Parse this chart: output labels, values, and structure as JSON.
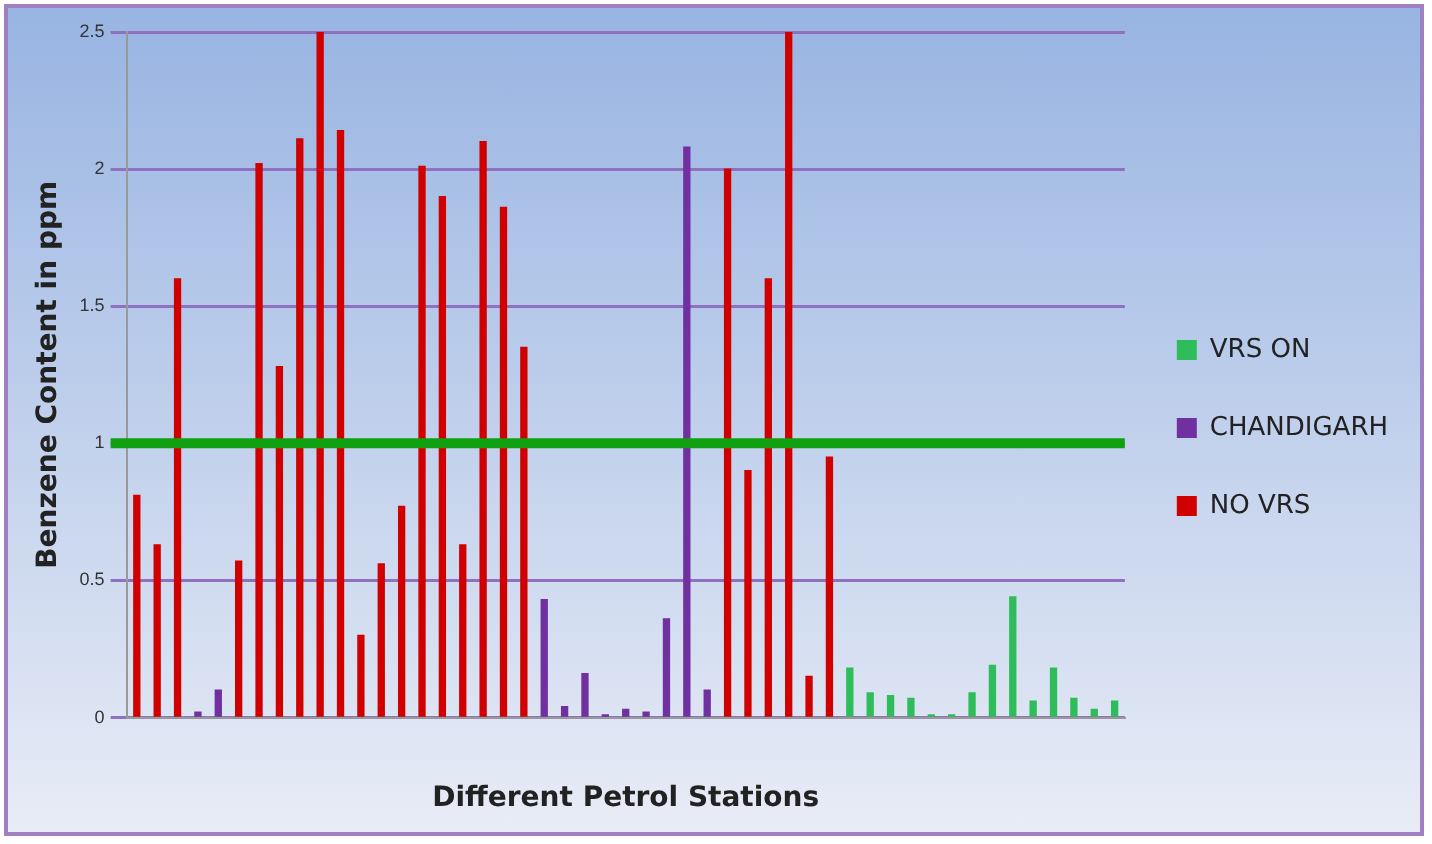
{
  "chart_data": {
    "type": "bar",
    "xlabel": "Different Petrol Stations",
    "ylabel": "Benzene Content in ppm",
    "categories": [
      null,
      null,
      null,
      null,
      null,
      null,
      null,
      null,
      null,
      null,
      null,
      null,
      null,
      null,
      null,
      null,
      null,
      null,
      null,
      null,
      null,
      null,
      null,
      null,
      null,
      null,
      null,
      null,
      null,
      null,
      null,
      null,
      null,
      null,
      null,
      null,
      null,
      null,
      null,
      null,
      null,
      null,
      null,
      null,
      null,
      null,
      null,
      null,
      null
    ],
    "series": [
      {
        "name": "VRS ON",
        "color": "#2ebd5a",
        "values": [
          null,
          null,
          null,
          null,
          null,
          null,
          null,
          null,
          null,
          null,
          null,
          null,
          null,
          null,
          null,
          null,
          null,
          null,
          null,
          null,
          null,
          null,
          null,
          null,
          null,
          null,
          null,
          null,
          null,
          null,
          null,
          null,
          null,
          null,
          null,
          0.18,
          0.09,
          0.08,
          0.07,
          0.01,
          0.01,
          0.09,
          0.19,
          0.44,
          0.06,
          0.18,
          0.07,
          0.03,
          0.06
        ]
      },
      {
        "name": "CHANDIGARH",
        "color": "#7030a0",
        "values": [
          null,
          null,
          null,
          0.02,
          0.1,
          null,
          null,
          null,
          null,
          null,
          null,
          null,
          null,
          null,
          null,
          null,
          null,
          null,
          null,
          null,
          0.43,
          0.04,
          0.16,
          0.01,
          0.03,
          0.02,
          0.36,
          2.08,
          0.1,
          null,
          null,
          null,
          null,
          null,
          null,
          null,
          null,
          null,
          null,
          null,
          null,
          null,
          null,
          null,
          null,
          null,
          null,
          null,
          null
        ]
      },
      {
        "name": "NO VRS",
        "color": "#d00000",
        "values": [
          0.81,
          0.63,
          1.6,
          null,
          null,
          0.57,
          2.02,
          1.28,
          2.11,
          2.5,
          2.14,
          0.3,
          0.56,
          0.77,
          2.01,
          1.9,
          0.63,
          2.1,
          1.86,
          1.35,
          null,
          null,
          null,
          null,
          null,
          null,
          null,
          null,
          null,
          2.0,
          0.9,
          1.6,
          2.5,
          0.15,
          0.95,
          null,
          null,
          null,
          null,
          null,
          null,
          null,
          null,
          null,
          null,
          null,
          null,
          null,
          null
        ]
      }
    ],
    "ylim": [
      0,
      2.5
    ],
    "yticks": [
      0,
      0.5,
      1,
      1.5,
      2,
      2.5
    ],
    "grid": "y",
    "legend": "right",
    "ref_lines": [
      {
        "axis": "y",
        "value": 1,
        "color": "#10a010"
      }
    ]
  }
}
